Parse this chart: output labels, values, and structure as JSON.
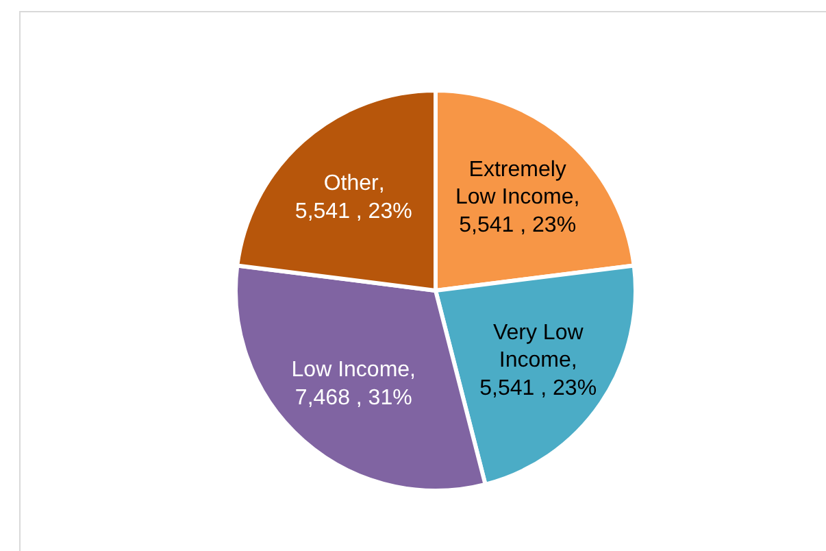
{
  "chart_data": {
    "type": "pie",
    "categories": [
      "Extremely Low Income",
      "Very Low Income",
      "Low Income",
      "Other"
    ],
    "values": [
      5541,
      5541,
      7468,
      5541
    ],
    "colors": [
      "#f79646",
      "#4bacc6",
      "#8064a2",
      "#b7560b"
    ],
    "value_labels": [
      ", 5,541 , 23%",
      ", 5,541 , 23%",
      ", 7,468 , 31%",
      ", 5,541 , 23%"
    ],
    "legend": false
  }
}
